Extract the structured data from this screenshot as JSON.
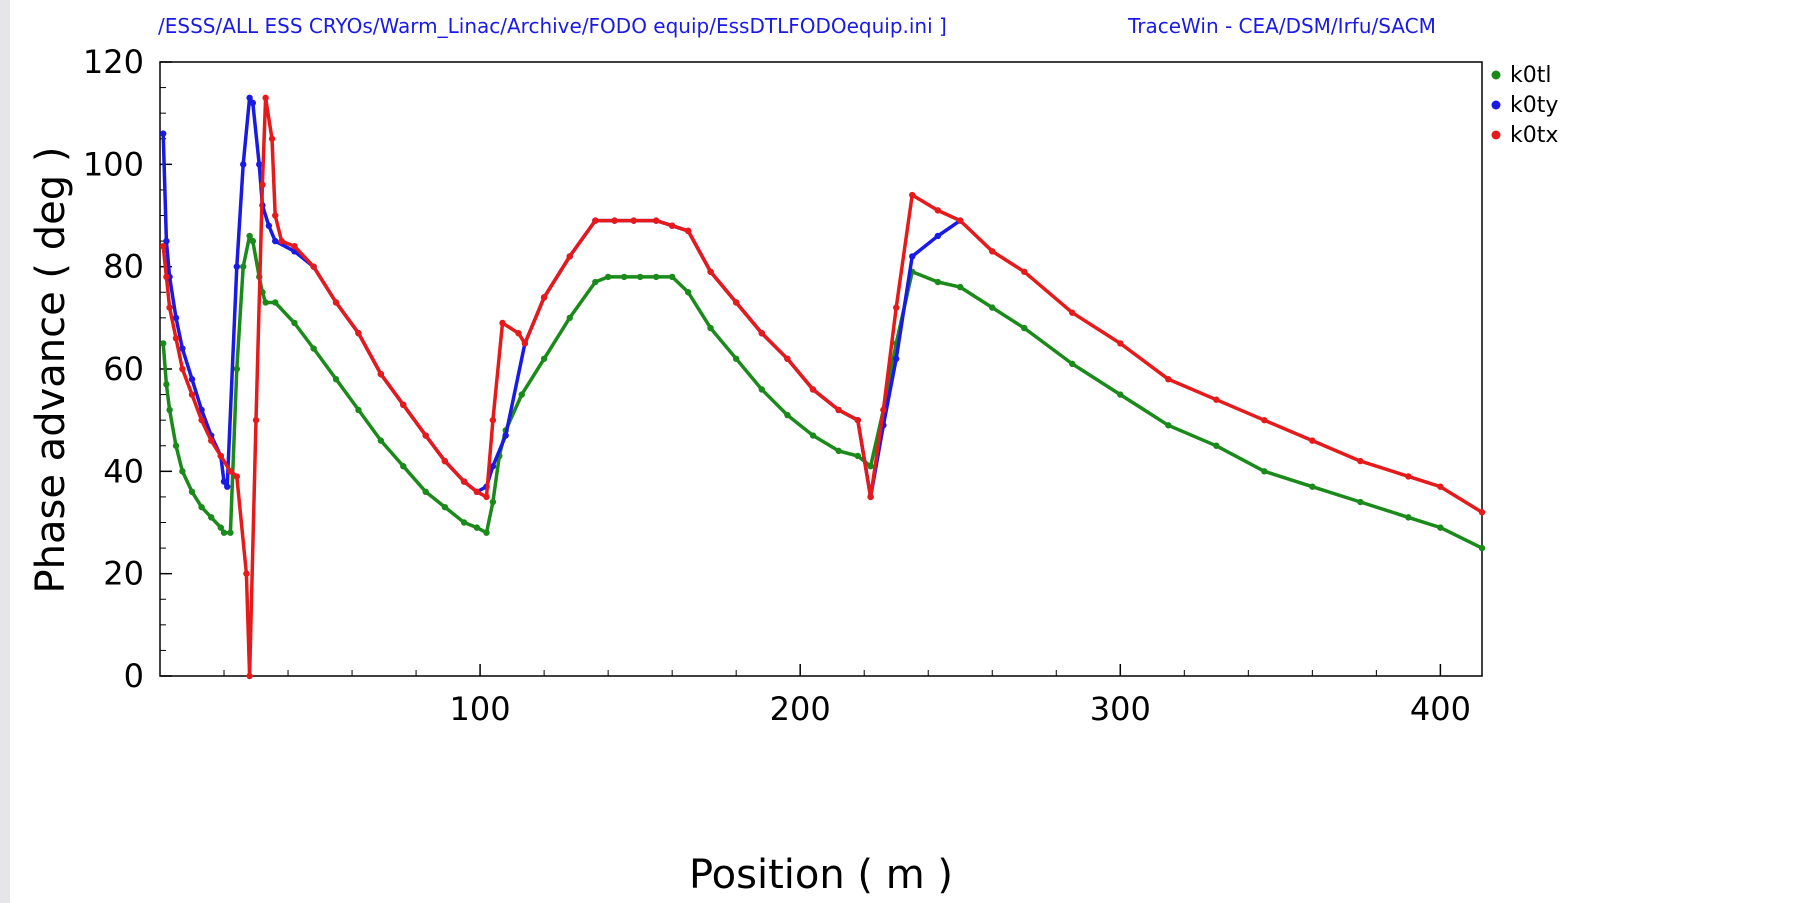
{
  "header": {
    "file_path": "/ESSS/ALL ESS CRYOs/Warm_Linac/Archive/FODO equip/EssDTLFODOequip.ini ]",
    "app_credit": "TraceWin - CEA/DSM/Irfu/SACM"
  },
  "colors": {
    "k0tl": "#1a8a1a",
    "k0ty": "#1a1ae6",
    "k0tx": "#e61a1a"
  },
  "chart_data": {
    "type": "line",
    "title": "",
    "xlabel": "Position ( m )",
    "ylabel": "Phase advance ( deg )",
    "xlim": [
      0,
      413
    ],
    "ylim": [
      0,
      120
    ],
    "x_ticks": [
      100,
      200,
      300,
      400
    ],
    "y_ticks": [
      0,
      20,
      40,
      60,
      80,
      100,
      120
    ],
    "grid": false,
    "legend_position": "right-top",
    "series": [
      {
        "name": "k0tl",
        "color": "#1a8a1a",
        "points": [
          [
            1,
            65
          ],
          [
            2,
            57
          ],
          [
            3,
            52
          ],
          [
            5,
            45
          ],
          [
            7,
            40
          ],
          [
            10,
            36
          ],
          [
            13,
            33
          ],
          [
            16,
            31
          ],
          [
            19,
            29
          ],
          [
            20,
            28
          ],
          [
            22,
            28
          ],
          [
            24,
            60
          ],
          [
            26,
            80
          ],
          [
            28,
            86
          ],
          [
            29,
            85
          ],
          [
            31,
            78
          ],
          [
            32,
            75
          ],
          [
            33,
            73
          ],
          [
            36,
            73
          ],
          [
            42,
            69
          ],
          [
            48,
            64
          ],
          [
            55,
            58
          ],
          [
            62,
            52
          ],
          [
            69,
            46
          ],
          [
            76,
            41
          ],
          [
            83,
            36
          ],
          [
            89,
            33
          ],
          [
            95,
            30
          ],
          [
            99,
            29
          ],
          [
            102,
            28
          ],
          [
            104,
            34
          ],
          [
            106,
            43
          ],
          [
            108,
            48
          ],
          [
            113,
            55
          ],
          [
            120,
            62
          ],
          [
            128,
            70
          ],
          [
            136,
            77
          ],
          [
            140,
            78
          ],
          [
            145,
            78
          ],
          [
            150,
            78
          ],
          [
            155,
            78
          ],
          [
            160,
            78
          ],
          [
            165,
            75
          ],
          [
            172,
            68
          ],
          [
            180,
            62
          ],
          [
            188,
            56
          ],
          [
            196,
            51
          ],
          [
            204,
            47
          ],
          [
            212,
            44
          ],
          [
            218,
            43
          ],
          [
            222,
            41
          ],
          [
            226,
            52
          ],
          [
            230,
            65
          ],
          [
            235,
            79
          ],
          [
            243,
            77
          ],
          [
            250,
            76
          ],
          [
            260,
            72
          ],
          [
            270,
            68
          ],
          [
            285,
            61
          ],
          [
            300,
            55
          ],
          [
            315,
            49
          ],
          [
            330,
            45
          ],
          [
            345,
            40
          ],
          [
            360,
            37
          ],
          [
            375,
            34
          ],
          [
            390,
            31
          ],
          [
            400,
            29
          ],
          [
            413,
            25
          ]
        ]
      },
      {
        "name": "k0ty",
        "color": "#1a1ae6",
        "points": [
          [
            1,
            106
          ],
          [
            2,
            85
          ],
          [
            3,
            78
          ],
          [
            5,
            70
          ],
          [
            7,
            64
          ],
          [
            10,
            58
          ],
          [
            13,
            52
          ],
          [
            16,
            47
          ],
          [
            19,
            43
          ],
          [
            20,
            38
          ],
          [
            21,
            37
          ],
          [
            24,
            80
          ],
          [
            26,
            100
          ],
          [
            28,
            113
          ],
          [
            29,
            112
          ],
          [
            31,
            100
          ],
          [
            32,
            92
          ],
          [
            34,
            88
          ],
          [
            36,
            85
          ],
          [
            42,
            83
          ],
          [
            48,
            80
          ],
          [
            55,
            73
          ],
          [
            62,
            67
          ],
          [
            69,
            59
          ],
          [
            76,
            53
          ],
          [
            83,
            47
          ],
          [
            89,
            42
          ],
          [
            95,
            38
          ],
          [
            99,
            36
          ],
          [
            102,
            37
          ],
          [
            104,
            41
          ],
          [
            108,
            47
          ],
          [
            114,
            65
          ],
          [
            120,
            74
          ],
          [
            128,
            82
          ],
          [
            136,
            89
          ],
          [
            142,
            89
          ],
          [
            148,
            89
          ],
          [
            155,
            89
          ],
          [
            160,
            88
          ],
          [
            165,
            87
          ],
          [
            172,
            79
          ],
          [
            180,
            73
          ],
          [
            188,
            67
          ],
          [
            196,
            62
          ],
          [
            204,
            56
          ],
          [
            212,
            52
          ],
          [
            218,
            50
          ],
          [
            222,
            35
          ],
          [
            226,
            49
          ],
          [
            230,
            62
          ],
          [
            235,
            82
          ],
          [
            243,
            86
          ],
          [
            250,
            89
          ]
        ]
      },
      {
        "name": "k0tx",
        "color": "#e61a1a",
        "points": [
          [
            1,
            84
          ],
          [
            2,
            78
          ],
          [
            3,
            72
          ],
          [
            5,
            66
          ],
          [
            7,
            60
          ],
          [
            10,
            55
          ],
          [
            13,
            50
          ],
          [
            16,
            46
          ],
          [
            19,
            43
          ],
          [
            22,
            40
          ],
          [
            24,
            39
          ],
          [
            27,
            20
          ],
          [
            28,
            0
          ],
          [
            30,
            50
          ],
          [
            32,
            96
          ],
          [
            33,
            113
          ],
          [
            35,
            105
          ],
          [
            36,
            90
          ],
          [
            38,
            85
          ],
          [
            42,
            84
          ],
          [
            48,
            80
          ],
          [
            55,
            73
          ],
          [
            62,
            67
          ],
          [
            69,
            59
          ],
          [
            76,
            53
          ],
          [
            83,
            47
          ],
          [
            89,
            42
          ],
          [
            95,
            38
          ],
          [
            99,
            36
          ],
          [
            102,
            35
          ],
          [
            104,
            50
          ],
          [
            107,
            69
          ],
          [
            112,
            67
          ],
          [
            114,
            65
          ],
          [
            120,
            74
          ],
          [
            128,
            82
          ],
          [
            136,
            89
          ],
          [
            142,
            89
          ],
          [
            148,
            89
          ],
          [
            155,
            89
          ],
          [
            160,
            88
          ],
          [
            165,
            87
          ],
          [
            172,
            79
          ],
          [
            180,
            73
          ],
          [
            188,
            67
          ],
          [
            196,
            62
          ],
          [
            204,
            56
          ],
          [
            212,
            52
          ],
          [
            218,
            50
          ],
          [
            222,
            35
          ],
          [
            226,
            52
          ],
          [
            230,
            72
          ],
          [
            235,
            94
          ],
          [
            243,
            91
          ],
          [
            250,
            89
          ],
          [
            260,
            83
          ],
          [
            270,
            79
          ],
          [
            285,
            71
          ],
          [
            300,
            65
          ],
          [
            315,
            58
          ],
          [
            330,
            54
          ],
          [
            345,
            50
          ],
          [
            360,
            46
          ],
          [
            375,
            42
          ],
          [
            390,
            39
          ],
          [
            400,
            37
          ],
          [
            413,
            32
          ]
        ]
      }
    ]
  }
}
